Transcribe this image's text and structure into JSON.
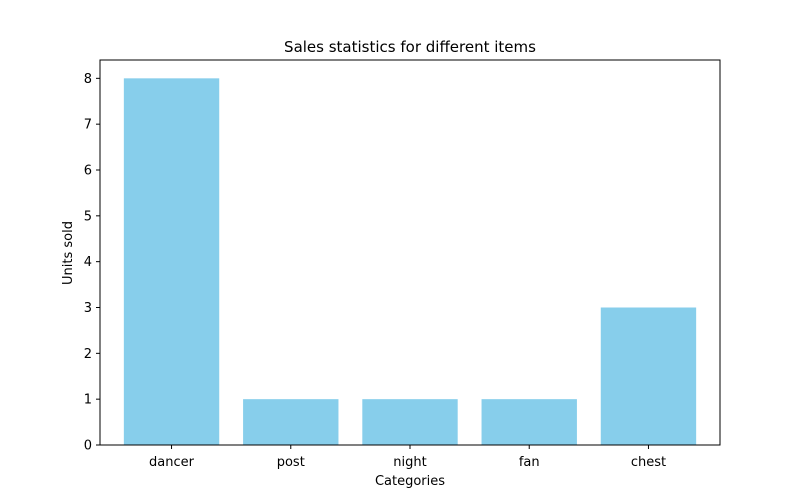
{
  "chart_data": {
    "type": "bar",
    "title": "Sales statistics for different items",
    "xlabel": "Categories",
    "ylabel": "Units sold",
    "categories": [
      "dancer",
      "post",
      "night",
      "fan",
      "chest"
    ],
    "values": [
      8,
      1,
      1,
      1,
      3
    ],
    "ylim": [
      0,
      8.4
    ],
    "yticks": [
      0,
      1,
      2,
      3,
      4,
      5,
      6,
      7,
      8
    ],
    "grid": false,
    "legend": "none",
    "bar_color": "#87ceeb"
  }
}
